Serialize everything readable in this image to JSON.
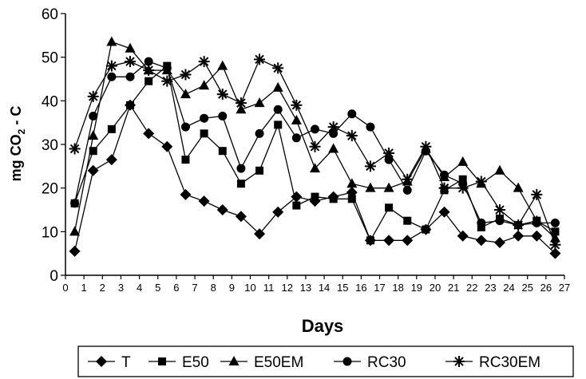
{
  "chart_data": {
    "type": "line",
    "xlabel": "Days",
    "ylabel": "mg CO2 - C",
    "ylabel_main": "mg CO",
    "ylabel_sub": "2",
    "ylabel_tail": " - C",
    "xlim": [
      0,
      27
    ],
    "ylim": [
      0,
      60
    ],
    "xticks": [
      0,
      1,
      2,
      3,
      4,
      5,
      6,
      7,
      8,
      9,
      10,
      11,
      12,
      13,
      14,
      15,
      16,
      17,
      18,
      19,
      20,
      21,
      22,
      23,
      24,
      25,
      26,
      27
    ],
    "yticks": [
      0,
      10,
      20,
      30,
      40,
      50,
      60
    ],
    "x": [
      0.5,
      1.5,
      2.5,
      3.5,
      4.5,
      5.5,
      6.5,
      7.5,
      8.5,
      9.5,
      10.5,
      11.5,
      12.5,
      13.5,
      14.5,
      15.5,
      16.5,
      17.5,
      18.5,
      19.5,
      20.5,
      21.5,
      22.5,
      23.5,
      24.5,
      25.5,
      26.5
    ],
    "legend_position": "bottom",
    "grid": false,
    "series": [
      {
        "name": "T",
        "marker": "diamond",
        "values": [
          5.5,
          24,
          26.5,
          39,
          32.5,
          29.5,
          18.5,
          17,
          15,
          13.5,
          9.5,
          14.5,
          18,
          17,
          18,
          19,
          8,
          8,
          8,
          10.5,
          14.5,
          9,
          8,
          7.5,
          9,
          9,
          5
        ]
      },
      {
        "name": "E50",
        "marker": "square",
        "values": [
          16.5,
          28.5,
          33.5,
          39,
          44.5,
          48,
          26.5,
          32.5,
          28.5,
          21,
          24,
          34.5,
          16,
          18,
          17.5,
          17.5,
          8,
          15.5,
          12.5,
          10.5,
          19.5,
          22,
          11,
          13,
          11.5,
          12.5,
          10
        ]
      },
      {
        "name": "E50EM",
        "marker": "triangle",
        "values": [
          10,
          32,
          53.5,
          52,
          47,
          47,
          41.5,
          43.5,
          48,
          38,
          39.5,
          43,
          35.5,
          24.5,
          29,
          21,
          20,
          20,
          21.5,
          29,
          22.5,
          26,
          21,
          24,
          20,
          12.5,
          8.5
        ]
      },
      {
        "name": "RC30",
        "marker": "circle",
        "values": [
          16.5,
          36.5,
          45.5,
          45.5,
          49,
          47.5,
          34,
          36,
          36.5,
          24.5,
          32.5,
          38,
          31.5,
          33.5,
          32.5,
          37,
          34,
          26.5,
          19.5,
          28.5,
          23,
          21,
          12,
          12.5,
          11.5,
          12,
          12
        ]
      },
      {
        "name": "RC30EM",
        "marker": "star",
        "values": [
          29,
          41,
          48,
          49,
          47,
          44.5,
          46,
          49,
          41.5,
          39.5,
          49.5,
          47.5,
          39,
          29.5,
          34,
          32,
          25,
          28,
          22,
          29.5,
          20,
          20,
          21.5,
          15,
          11.5,
          18.5,
          7
        ]
      }
    ]
  }
}
